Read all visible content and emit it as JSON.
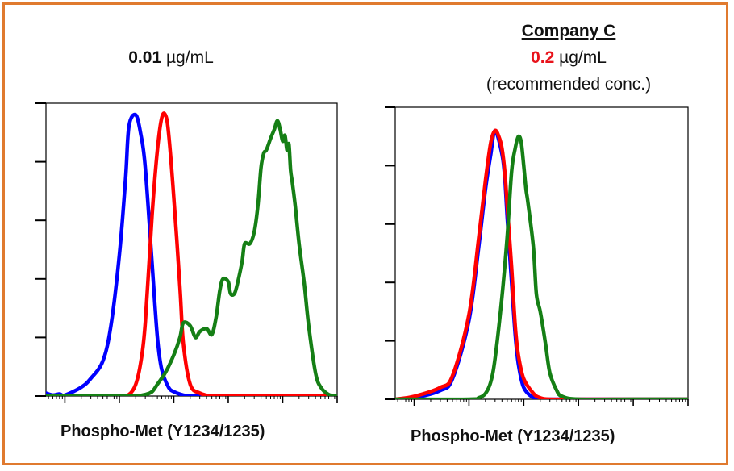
{
  "accent_border_color": "#E07A2F",
  "panels": [
    {
      "company": "",
      "concentration_value": "0.01",
      "concentration_unit": " µg/mL",
      "concentration_value_color": "#111111",
      "note": "",
      "x_axis_label": "Phospho-Met (Y1234/1235)"
    },
    {
      "company": "Company C",
      "concentration_value": "0.2",
      "concentration_unit": " µg/mL",
      "concentration_value_color": "#E8131B",
      "note": "(recommended conc.)",
      "x_axis_label": "Phospho-Met (Y1234/1235)"
    }
  ],
  "chart_data": [
    {
      "type": "line",
      "title": "",
      "x_scale": "log",
      "xlim": [
        0.45,
        100000
      ],
      "ylim": [
        0,
        100
      ],
      "grid": false,
      "series": [
        {
          "color": "#0000FF",
          "x": [
            0.45,
            0.6,
            0.8,
            1,
            2,
            3,
            5,
            7,
            10,
            13,
            15,
            20,
            25,
            30,
            40,
            50,
            60,
            80,
            100,
            150,
            200,
            300,
            500,
            1000,
            10000,
            100000
          ],
          "y": [
            1,
            0.3,
            0.7,
            0.3,
            3,
            6,
            12,
            24,
            48,
            74,
            92,
            96,
            89,
            78,
            45,
            20,
            9,
            3,
            1.5,
            0.3,
            0,
            0,
            0,
            0,
            0,
            0
          ]
        },
        {
          "color": "#FF0000",
          "x": [
            0.45,
            1,
            3,
            5,
            10,
            15,
            20,
            25,
            30,
            40,
            50,
            60,
            70,
            80,
            100,
            130,
            150,
            200,
            300,
            500,
            1000,
            10000,
            100000
          ],
          "y": [
            0,
            0,
            0,
            0,
            0,
            0.5,
            4,
            12,
            25,
            62,
            84,
            95,
            96,
            90,
            68,
            37,
            18,
            4,
            1,
            0,
            0,
            0,
            0
          ]
        },
        {
          "color": "#157F15",
          "x": [
            0.45,
            5,
            10,
            20,
            30,
            40,
            50,
            70,
            100,
            130,
            150,
            200,
            250,
            300,
            400,
            500,
            600,
            700,
            800,
            1000,
            1100,
            1300,
            1500,
            1800,
            2000,
            2500,
            3000,
            3500,
            4000,
            4500,
            5000,
            6000,
            7000,
            8000,
            9000,
            10000,
            11000,
            12000,
            13000,
            14000,
            15000,
            17000,
            20000,
            25000,
            30000,
            40000,
            50000,
            70000,
            100000
          ],
          "y": [
            0,
            0,
            0,
            0,
            0.5,
            1.5,
            4,
            8,
            14,
            20,
            25,
            24,
            20,
            22,
            23,
            21,
            27,
            36,
            40,
            39,
            35,
            35,
            39,
            46,
            52,
            52,
            56,
            65,
            78,
            83,
            84,
            88,
            91,
            94,
            91,
            87,
            89,
            84,
            86,
            77,
            73,
            65,
            52,
            38,
            24,
            8,
            3,
            0.5,
            0
          ]
        }
      ]
    },
    {
      "type": "line",
      "title": "",
      "x_scale": "log",
      "xlim": [
        0.45,
        100000
      ],
      "ylim": [
        0,
        100
      ],
      "grid": false,
      "series": [
        {
          "color": "#0000FF",
          "x": [
            0.45,
            1,
            3,
            5,
            10,
            15,
            20,
            25,
            30,
            40,
            45,
            50,
            60,
            70,
            80,
            100,
            150,
            200,
            300,
            1000,
            10000,
            100000
          ],
          "y": [
            0,
            0.5,
            3,
            7,
            27,
            52,
            72,
            84,
            92,
            84,
            76,
            62,
            40,
            22,
            12,
            4,
            0.5,
            0,
            0,
            0,
            0,
            0
          ]
        },
        {
          "color": "#FF0000",
          "x": [
            0.45,
            1,
            3,
            5,
            10,
            15,
            20,
            25,
            30,
            35,
            40,
            45,
            50,
            60,
            70,
            80,
            100,
            150,
            200,
            300,
            1000,
            10000,
            100000
          ],
          "y": [
            0,
            1,
            4,
            8,
            29,
            55,
            75,
            88,
            92,
            90,
            86,
            78,
            66,
            45,
            25,
            15,
            7,
            2,
            0.5,
            0,
            0,
            0,
            0
          ]
        },
        {
          "color": "#157F15",
          "x": [
            0.45,
            10,
            15,
            20,
            25,
            30,
            40,
            50,
            60,
            70,
            80,
            90,
            100,
            110,
            120,
            150,
            170,
            200,
            250,
            300,
            400,
            500,
            1000,
            10000,
            100000
          ],
          "y": [
            0,
            0,
            0.5,
            2,
            6,
            14,
            35,
            56,
            78,
            86,
            90,
            88,
            80,
            72,
            67,
            52,
            36,
            30,
            19,
            9,
            3,
            1,
            0,
            0,
            0
          ]
        }
      ]
    }
  ]
}
